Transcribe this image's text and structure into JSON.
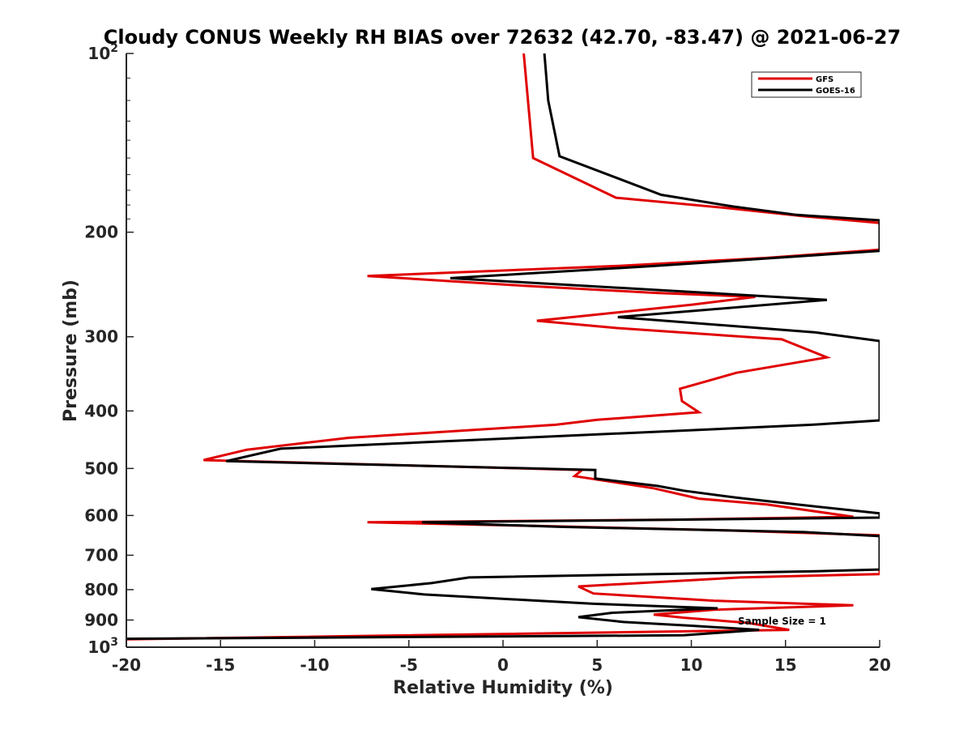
{
  "chart_data": {
    "type": "line",
    "title": "Cloudy CONUS Weekly RH BIAS over 72632 (42.70, -83.47) @ 2021-06-27",
    "xlabel": "Relative Humidity (%)",
    "ylabel": "Pressure (mb)",
    "xlim": [
      -20,
      20
    ],
    "ylim": [
      100,
      1000
    ],
    "y_scale": "log",
    "y_reversed": true,
    "grid": false,
    "legend_position": "top-right",
    "x_ticks": [
      {
        "value": -20,
        "label": "-20"
      },
      {
        "value": -15,
        "label": "-15"
      },
      {
        "value": -10,
        "label": "-10"
      },
      {
        "value": -5,
        "label": "-5"
      },
      {
        "value": 0,
        "label": "0"
      },
      {
        "value": 5,
        "label": "5"
      },
      {
        "value": 10,
        "label": "10"
      },
      {
        "value": 15,
        "label": "15"
      },
      {
        "value": 20,
        "label": "20"
      }
    ],
    "y_ticks": [
      {
        "value": 100,
        "label": "10",
        "sup": "2"
      },
      {
        "value": 200,
        "label": "200"
      },
      {
        "value": 300,
        "label": "300"
      },
      {
        "value": 400,
        "label": "400"
      },
      {
        "value": 500,
        "label": "500"
      },
      {
        "value": 600,
        "label": "600"
      },
      {
        "value": 700,
        "label": "700"
      },
      {
        "value": 800,
        "label": "800"
      },
      {
        "value": 900,
        "label": "900"
      },
      {
        "value": 1000,
        "label": "10",
        "sup": "3"
      }
    ],
    "series": [
      {
        "name": "GFS",
        "color": "#e00000",
        "points": [
          [
            1.1,
            100
          ],
          [
            1.6,
            150
          ],
          [
            6.0,
            175
          ],
          [
            11.8,
            182
          ],
          [
            16.0,
            188
          ],
          [
            20.0,
            193
          ],
          [
            20.0,
            214
          ],
          [
            14.0,
            221
          ],
          [
            6.0,
            228
          ],
          [
            -7.2,
            237
          ],
          [
            1.0,
            246
          ],
          [
            8.0,
            253
          ],
          [
            13.4,
            257
          ],
          [
            10.0,
            265
          ],
          [
            1.8,
            282
          ],
          [
            6.0,
            290
          ],
          [
            14.8,
            303
          ],
          [
            17.2,
            325
          ],
          [
            12.4,
            345
          ],
          [
            9.4,
            367
          ],
          [
            9.5,
            385
          ],
          [
            10.4,
            402
          ],
          [
            5.0,
            414
          ],
          [
            2.8,
            422
          ],
          [
            -8.2,
            444
          ],
          [
            -13.6,
            465
          ],
          [
            -15.9,
            484
          ],
          [
            4.2,
            503
          ],
          [
            3.8,
            515
          ],
          [
            8.0,
            540
          ],
          [
            10.4,
            562
          ],
          [
            14.0,
            575
          ],
          [
            18.6,
            603
          ],
          [
            9.0,
            610
          ],
          [
            -7.2,
            616
          ],
          [
            2.0,
            625
          ],
          [
            12.0,
            636
          ],
          [
            20.0,
            648
          ],
          [
            20.0,
            753
          ],
          [
            12.6,
            763
          ],
          [
            4.0,
            790
          ],
          [
            4.8,
            812
          ],
          [
            11.2,
            835
          ],
          [
            18.6,
            850
          ],
          [
            11.2,
            865
          ],
          [
            8.0,
            881
          ],
          [
            9.6,
            892
          ],
          [
            13.0,
            910
          ],
          [
            15.2,
            935
          ],
          [
            -20,
            970
          ]
        ]
      },
      {
        "name": "GOES-16",
        "color": "#000000",
        "points": [
          [
            2.2,
            100
          ],
          [
            2.4,
            120
          ],
          [
            3.0,
            149
          ],
          [
            8.4,
            173
          ],
          [
            12.2,
            181
          ],
          [
            15.6,
            187
          ],
          [
            20.0,
            191
          ],
          [
            20.0,
            215
          ],
          [
            8.0,
            228
          ],
          [
            -2.8,
            239
          ],
          [
            8.0,
            250
          ],
          [
            17.2,
            260
          ],
          [
            6.1,
            278
          ],
          [
            16.6,
            295
          ],
          [
            20.0,
            305
          ],
          [
            20.0,
            415
          ],
          [
            16.4,
            422
          ],
          [
            -11.8,
            463
          ],
          [
            -14.7,
            486
          ],
          [
            4.9,
            503
          ],
          [
            4.9,
            520
          ],
          [
            8.2,
            535
          ],
          [
            9.6,
            545
          ],
          [
            12.4,
            560
          ],
          [
            15.6,
            575
          ],
          [
            20.0,
            595
          ],
          [
            20.0,
            605
          ],
          [
            -4.3,
            616
          ],
          [
            3.0,
            627
          ],
          [
            16.0,
            640
          ],
          [
            20.0,
            650
          ],
          [
            20.0,
            740
          ],
          [
            16.6,
            745
          ],
          [
            -1.8,
            763
          ],
          [
            -3.8,
            780
          ],
          [
            -7.0,
            798
          ],
          [
            -4.2,
            815
          ],
          [
            4.8,
            845
          ],
          [
            11.4,
            860
          ],
          [
            5.8,
            875
          ],
          [
            4.0,
            890
          ],
          [
            6.4,
            907
          ],
          [
            10.0,
            920
          ],
          [
            13.6,
            935
          ],
          [
            9.6,
            955
          ],
          [
            -20,
            968
          ]
        ]
      }
    ],
    "annotations": [
      {
        "text": "Sample Size = 1",
        "x": 12.5,
        "y": 900
      }
    ]
  }
}
